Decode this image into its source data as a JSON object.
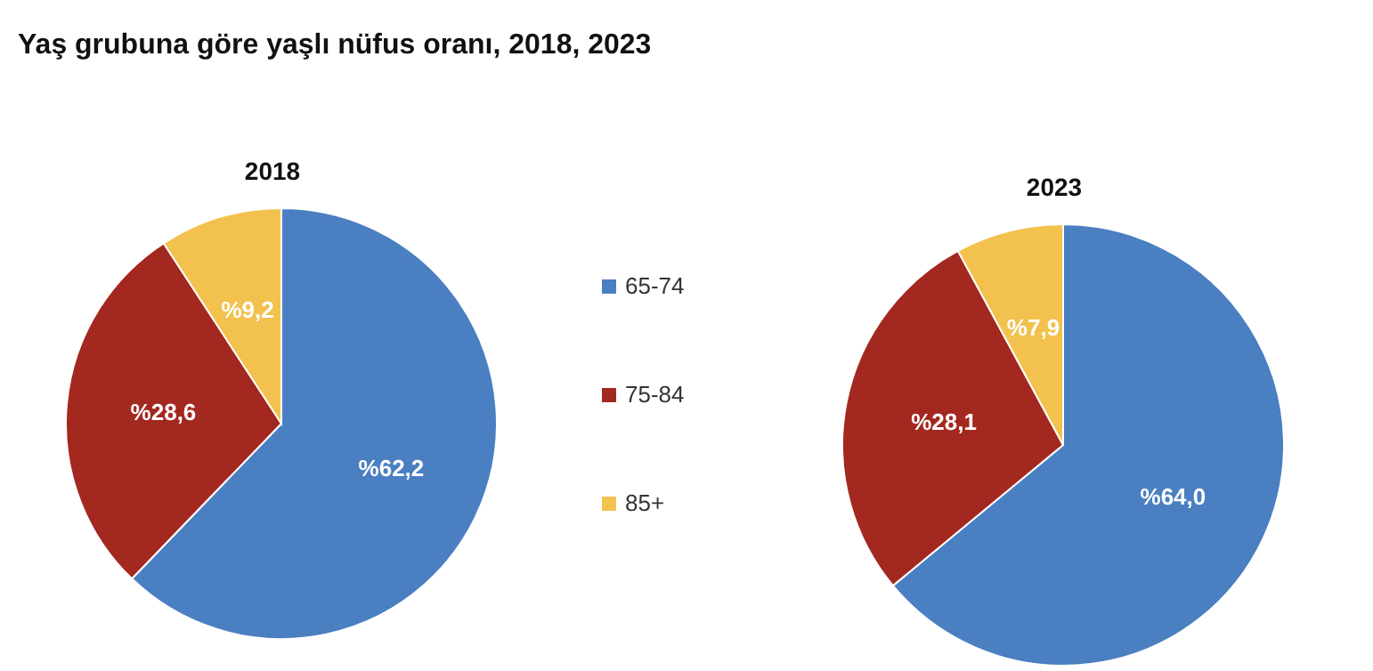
{
  "chart_data": [
    {
      "type": "pie",
      "title": "Yaş grubuna göre yaşlı nüfus oranı, 2018, 2023",
      "subtitle": "2018",
      "categories": [
        "65-74",
        "75-84",
        "85+"
      ],
      "values": [
        62.2,
        28.6,
        9.2
      ],
      "colors": [
        "#4a7fc1",
        "#a3281f",
        "#f2c14e"
      ],
      "value_labels": [
        "%62,2",
        "%28,6",
        "%9,2"
      ],
      "legend": "right"
    },
    {
      "type": "pie",
      "title": "2023",
      "categories": [
        null,
        null,
        null
      ],
      "values": [
        64.0,
        28.1,
        7.9
      ],
      "colors": [
        "#4a7fc1",
        "#a3281f",
        "#f2c14e"
      ],
      "value_labels": [
        "%64,0",
        "%28,1",
        "%7,9"
      ],
      "legend": false
    }
  ]
}
